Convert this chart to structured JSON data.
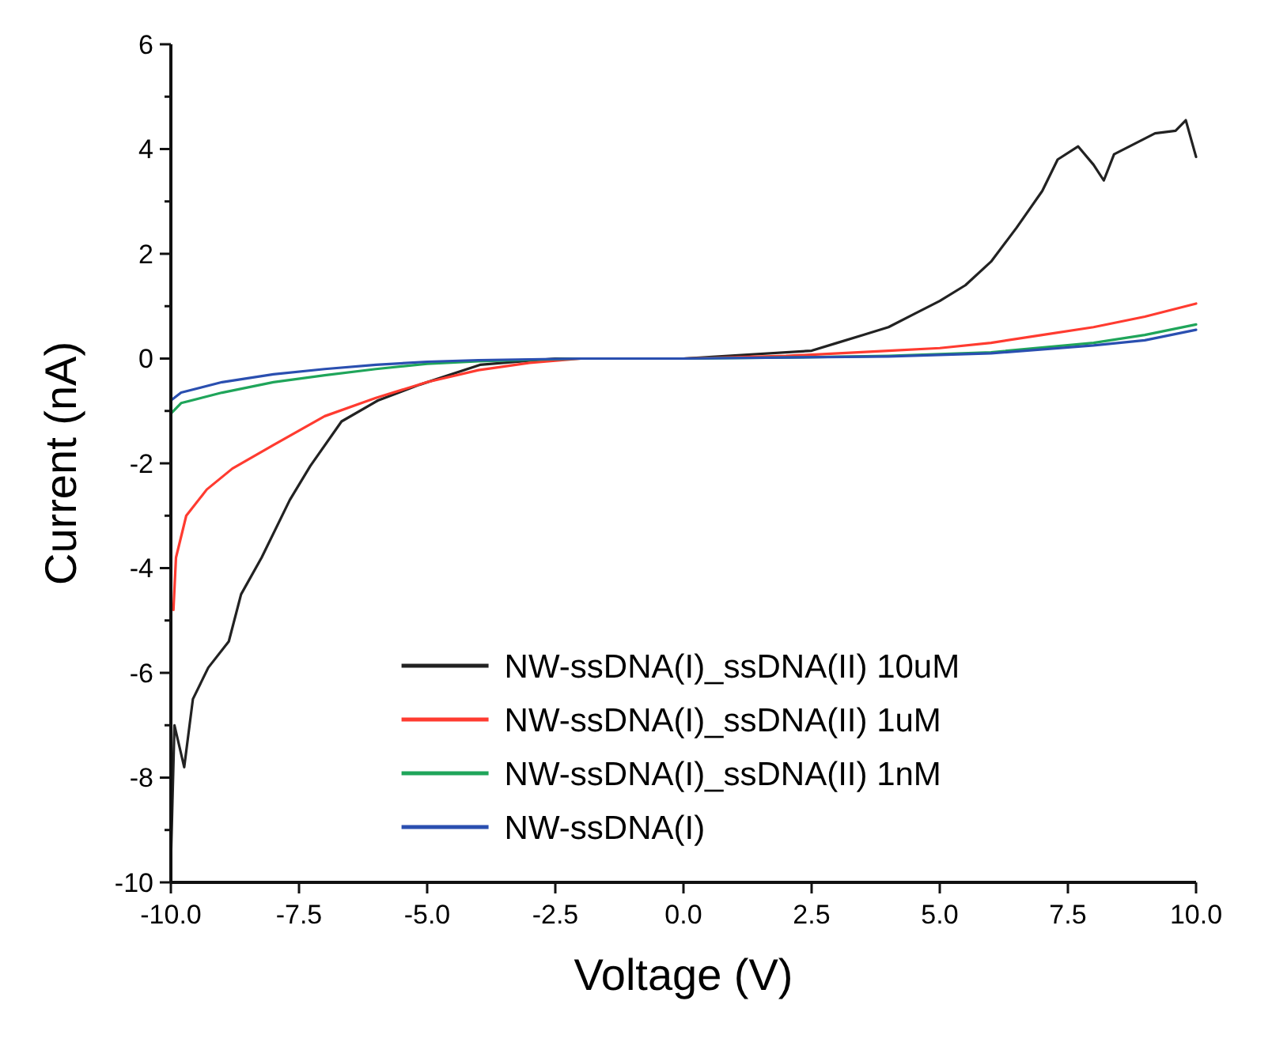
{
  "chart_data": {
    "type": "line",
    "xlabel": "Voltage (V)",
    "ylabel": "Current (nA)",
    "xlim": [
      -10,
      10
    ],
    "ylim": [
      -10,
      6
    ],
    "xticks": [
      {
        "value": -10,
        "label": "-10.0"
      },
      {
        "value": -7.5,
        "label": "-7.5"
      },
      {
        "value": -5,
        "label": "-5.0"
      },
      {
        "value": -2.5,
        "label": "-2.5"
      },
      {
        "value": 0,
        "label": "0.0"
      },
      {
        "value": 2.5,
        "label": "2.5"
      },
      {
        "value": 5,
        "label": "5.0"
      },
      {
        "value": 7.5,
        "label": "7.5"
      },
      {
        "value": 10,
        "label": "10.0"
      }
    ],
    "yticks": [
      -10,
      {
        "value": -9,
        "label": null
      },
      -8,
      {
        "value": -7,
        "label": null
      },
      -6,
      {
        "value": -5,
        "label": null
      },
      -4,
      {
        "value": -3,
        "label": null
      },
      -2,
      {
        "value": -1,
        "label": null
      },
      0,
      {
        "value": 1,
        "label": null
      },
      2,
      {
        "value": 3,
        "label": null
      },
      4,
      {
        "value": 5,
        "label": null
      },
      6
    ],
    "grid": false,
    "legend": "bottom right",
    "line_style": "solid",
    "marker": "none",
    "series": [
      {
        "name": "NW-ssDNA(I)_ssDNA(II) 10uM",
        "color": "#222222",
        "x": [
          -10,
          -9.93,
          -9.74,
          -9.57,
          -9.27,
          -8.87,
          -8.63,
          -8.23,
          -7.68,
          -7.28,
          -6.67,
          -5.96,
          -5.15,
          -3.97,
          -2.5,
          0,
          2.5,
          3,
          3.5,
          4,
          4.5,
          5,
          5.5,
          6,
          6.5,
          7,
          7.3,
          7.7,
          8,
          8.2,
          8.4,
          8.8,
          9.2,
          9.6,
          9.8,
          10
        ],
        "values": [
          -9.6,
          -7,
          -7.8,
          -6.5,
          -5.9,
          -5.4,
          -4.5,
          -3.8,
          -2.7,
          -2.05,
          -1.2,
          -0.8,
          -0.5,
          -0.12,
          0,
          0,
          0.15,
          0.3,
          0.45,
          0.6,
          0.85,
          1.1,
          1.4,
          1.85,
          2.5,
          3.2,
          3.8,
          4.05,
          3.7,
          3.4,
          3.9,
          4.1,
          4.3,
          4.35,
          4.55,
          3.85
        ]
      },
      {
        "name": "NW-ssDNA(I)_ssDNA(II) 1uM",
        "color": "#ff3b30",
        "x": [
          -9.95,
          -9.9,
          -9.7,
          -9.3,
          -8.8,
          -8,
          -7,
          -6,
          -5,
          -4,
          -3,
          -2,
          0,
          2,
          4,
          5,
          6,
          7,
          8,
          9,
          10
        ],
        "values": [
          -4.8,
          -3.8,
          -3,
          -2.5,
          -2.1,
          -1.65,
          -1.1,
          -0.75,
          -0.45,
          -0.22,
          -0.08,
          0,
          0,
          0.05,
          0.15,
          0.2,
          0.3,
          0.45,
          0.6,
          0.8,
          1.05
        ]
      },
      {
        "name": "NW-ssDNA(I)_ssDNA(II) 1nM",
        "color": "#1fa55a",
        "x": [
          -10,
          -9.8,
          -9,
          -8,
          -7,
          -6,
          -5,
          -4,
          -2,
          0,
          2,
          4,
          6,
          8,
          9,
          10
        ],
        "values": [
          -1.05,
          -0.85,
          -0.65,
          -0.45,
          -0.32,
          -0.2,
          -0.1,
          -0.05,
          0,
          0,
          0.02,
          0.05,
          0.12,
          0.3,
          0.45,
          0.65
        ]
      },
      {
        "name": "NW-ssDNA(I)",
        "color": "#2a4fb0",
        "x": [
          -10,
          -9.8,
          -9,
          -8,
          -7,
          -6,
          -5,
          -4,
          -2,
          0,
          2,
          4,
          6,
          8,
          9,
          10
        ],
        "values": [
          -0.8,
          -0.65,
          -0.45,
          -0.3,
          -0.2,
          -0.12,
          -0.06,
          -0.03,
          0,
          0,
          0.02,
          0.04,
          0.1,
          0.25,
          0.35,
          0.55
        ]
      }
    ]
  }
}
